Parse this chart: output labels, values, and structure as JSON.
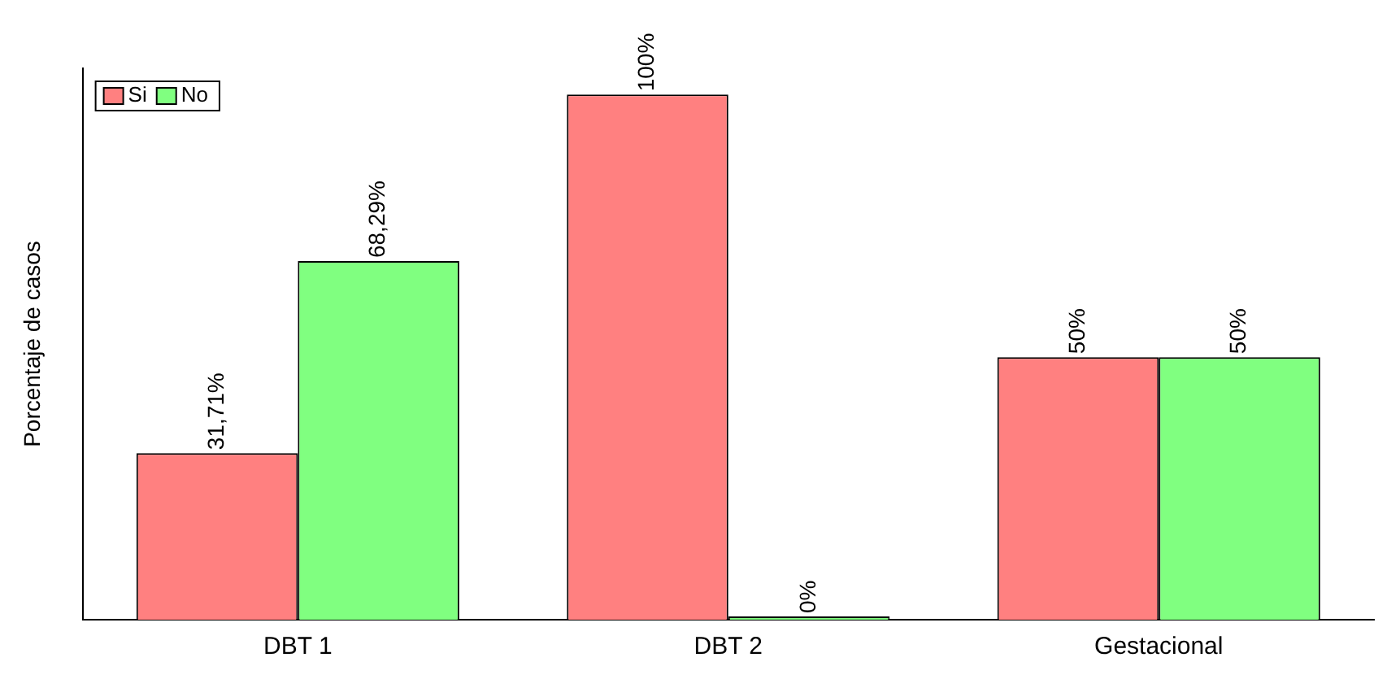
{
  "chart_data": {
    "type": "bar",
    "ylabel": "Porcentaje de casos",
    "categories": [
      "DBT 1",
      "DBT 2",
      "Gestacional"
    ],
    "series": [
      {
        "name": "Si",
        "color": "#ff8080",
        "values": [
          31.71,
          100,
          50
        ],
        "value_labels": [
          "31,71%",
          "100%",
          "50%"
        ]
      },
      {
        "name": "No",
        "color": "#80ff80",
        "values": [
          68.29,
          0,
          50
        ],
        "value_labels": [
          "68,29%",
          "0%",
          "50%"
        ]
      }
    ],
    "ylim": [
      0,
      105
    ],
    "tick_labels": "x",
    "grid": false,
    "legend": "top left"
  }
}
